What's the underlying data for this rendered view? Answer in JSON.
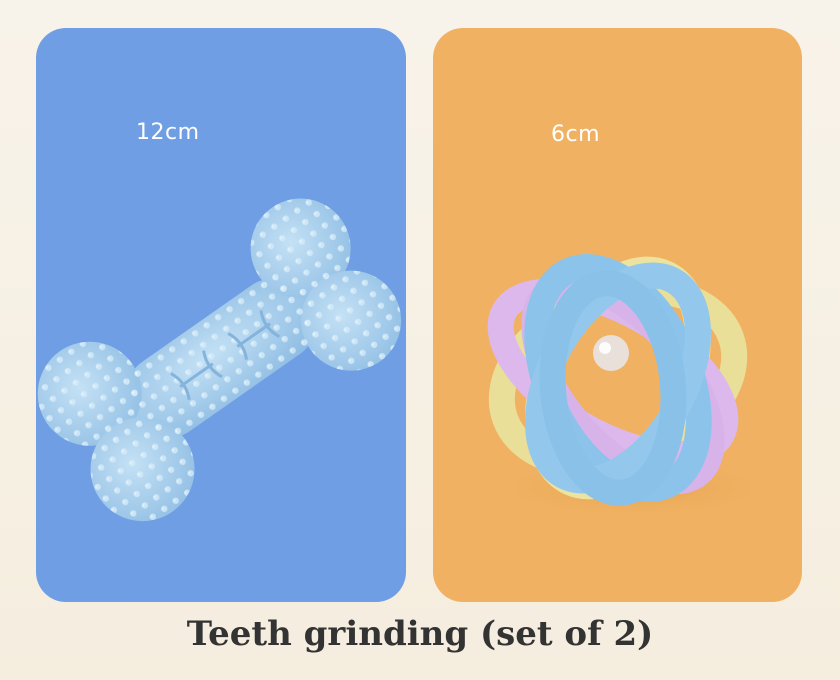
{
  "products": [
    {
      "size_label": "12cm",
      "icon": "spiky-bone-chew-toy",
      "background": "#6f9ee4",
      "item_color": "#a6cdeb"
    },
    {
      "size_label": "6cm",
      "icon": "woven-rainbow-ball-toy",
      "background": "#f0b262",
      "item_colors": [
        "#8ec4ea",
        "#d8b6ea",
        "#eae19c"
      ]
    }
  ],
  "caption": "Teeth grinding (set of 2)"
}
